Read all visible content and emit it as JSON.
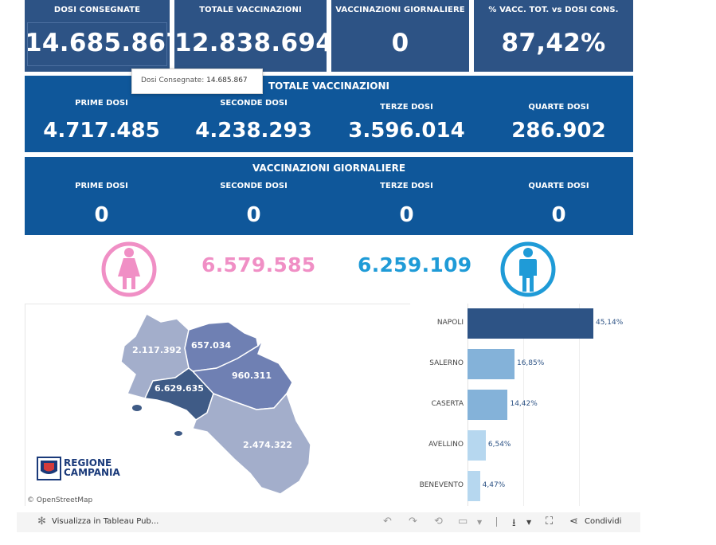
{
  "kpis": [
    {
      "label": "DOSI  CONSEGNATE",
      "value": "14.685.867"
    },
    {
      "label": "TOTALE VACCINAZIONI",
      "value": "12.838.694"
    },
    {
      "label": "VACCINAZIONI GIORNALIERE",
      "value": "0"
    },
    {
      "label": "% VACC. TOT. vs DOSI CONS.",
      "value": "87,42%"
    }
  ],
  "tooltip": {
    "label": "Dosi Consegnate:",
    "value": "14.685.867"
  },
  "totale": {
    "title": "TOTALE VACCINAZIONI",
    "items": [
      {
        "label": "PRIME DOSI",
        "value": "4.717.485"
      },
      {
        "label": "SECONDE DOSI",
        "value": "4.238.293"
      },
      {
        "label": "TERZE DOSI",
        "value": "3.596.014"
      },
      {
        "label": "QUARTE DOSI",
        "value": "286.902"
      }
    ]
  },
  "giornaliere": {
    "title": "VACCINAZIONI GIORNALIERE",
    "items": [
      {
        "label": "PRIME DOSI",
        "value": "0"
      },
      {
        "label": "SECONDE DOSI",
        "value": "0"
      },
      {
        "label": "TERZE DOSI",
        "value": "0"
      },
      {
        "label": "QUARTE DOSI",
        "value": "0"
      }
    ]
  },
  "gender": {
    "female_value": "6.579.585",
    "male_value": "6.259.109",
    "female_color": "#f08fc5",
    "male_color": "#1f9bd7",
    "female_icon": "female-person-icon",
    "male_icon": "male-person-icon"
  },
  "map": {
    "regions": [
      {
        "name": "caserta",
        "value": "2.117.392",
        "color": "#a3aecb"
      },
      {
        "name": "benevento",
        "value": "657.034",
        "color": "#6f80b3"
      },
      {
        "name": "avellino",
        "value": "960.311",
        "color": "#6f80b3"
      },
      {
        "name": "napoli",
        "value": "6.629.635",
        "color": "#3f5b86"
      },
      {
        "name": "salerno",
        "value": "2.474.322",
        "color": "#a3aecb"
      }
    ],
    "logo_text_1": "REGIONE",
    "logo_text_2": "CAMPANIA",
    "attribution": "© OpenStreetMap"
  },
  "chart_data": {
    "type": "bar",
    "orientation": "horizontal",
    "categories": [
      "NAPOLI",
      "SALERNO",
      "CASERTA",
      "AVELLINO",
      "BENEVENTO"
    ],
    "values": [
      45.14,
      16.85,
      14.42,
      6.54,
      4.47
    ],
    "value_labels": [
      "45,14%",
      "16,85%",
      "14,42%",
      "6,54%",
      "4,47%"
    ],
    "colors": [
      "#2d5385",
      "#84b2d9",
      "#84b2d9",
      "#b6d7ef",
      "#b6d7ef"
    ],
    "xlim": [
      0,
      60
    ]
  },
  "toolbar": {
    "view_label": "Visualizza in Tableau Pub...",
    "share_label": "Condividi",
    "icons": [
      "tableau-logo-icon",
      "undo-icon",
      "redo-icon",
      "revert-icon",
      "refresh-icon",
      "download-icon",
      "fullscreen-icon",
      "share-icon"
    ]
  }
}
